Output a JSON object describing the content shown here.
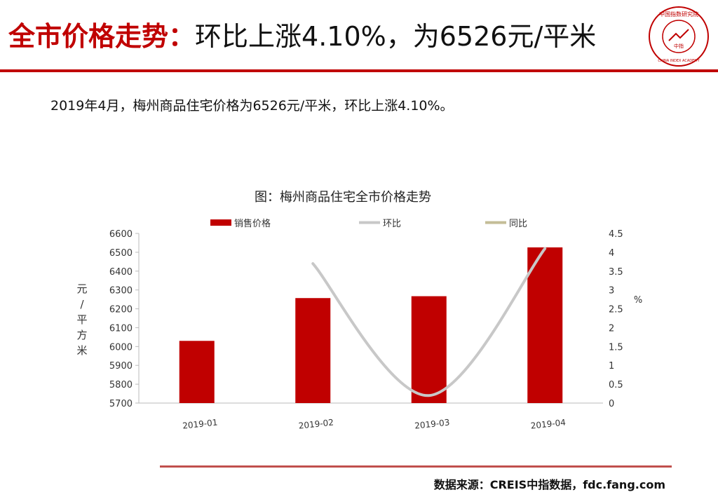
{
  "header": {
    "title_main": "全市价格走势",
    "title_sep": "：",
    "title_sub": "环比上涨4.10%，为6526元/平米",
    "logo_icon": "china-index-academy-seal-icon",
    "logo_text_top": "中国指数研究院",
    "logo_text_bottom": "CHINA INDEX ACADEMY",
    "logo_center": "中指"
  },
  "summary": "2019年4月，梅州商品住宅价格为6526元/平米，环比上涨4.10%。",
  "chart_data": {
    "type": "bar",
    "title": "图：梅州商品住宅全市价格走势",
    "categories": [
      "2019-01",
      "2019-02",
      "2019-03",
      "2019-04"
    ],
    "series": [
      {
        "name": "销售价格",
        "type": "bar",
        "axis": "left",
        "values": [
          6030,
          6257,
          6267,
          6526
        ],
        "color": "#c00000"
      },
      {
        "name": "环比",
        "type": "line",
        "axis": "right",
        "values": [
          null,
          3.7,
          0.2,
          4.1
        ],
        "color": "#c8c8c8"
      },
      {
        "name": "同比",
        "type": "line",
        "axis": "right",
        "values": [
          null,
          null,
          null,
          null
        ],
        "color": "#c4bd97"
      }
    ],
    "y_left": {
      "label": "元/平方米",
      "min": 5700,
      "max": 6600,
      "ticks": [
        5700,
        5800,
        5900,
        6000,
        6100,
        6200,
        6300,
        6400,
        6500,
        6600
      ]
    },
    "y_right": {
      "label": "%",
      "min": 0,
      "max": 4.5,
      "ticks": [
        "0",
        "0.5",
        "1",
        "1.5",
        "2",
        "2.5",
        "3",
        "3.5",
        "4",
        "4.5"
      ]
    },
    "legend_position": "top",
    "grid": false
  },
  "footer": {
    "source": "数据来源：CREIS中指数据，fdc.fang.com"
  }
}
